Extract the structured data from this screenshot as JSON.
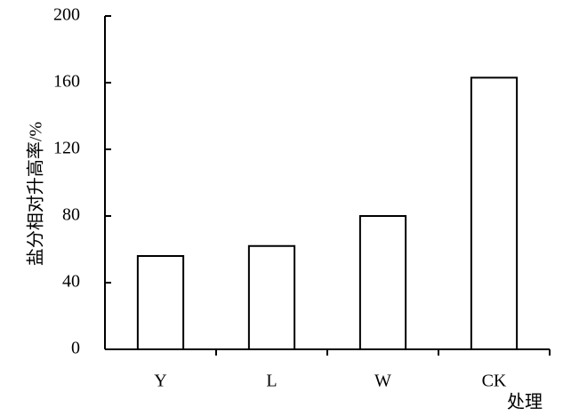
{
  "chart_data": {
    "type": "bar",
    "y_label": "盐分相对升高率/%",
    "x_label": "处理",
    "categories": [
      "Y",
      "L",
      "W",
      "CK"
    ],
    "values": [
      56,
      62,
      80,
      163
    ],
    "color": "#ffffff",
    "edge_color": "#000000",
    "ylim": [
      0,
      200
    ],
    "yticks": [
      0,
      40,
      80,
      120,
      160,
      200
    ],
    "grid": false
  }
}
